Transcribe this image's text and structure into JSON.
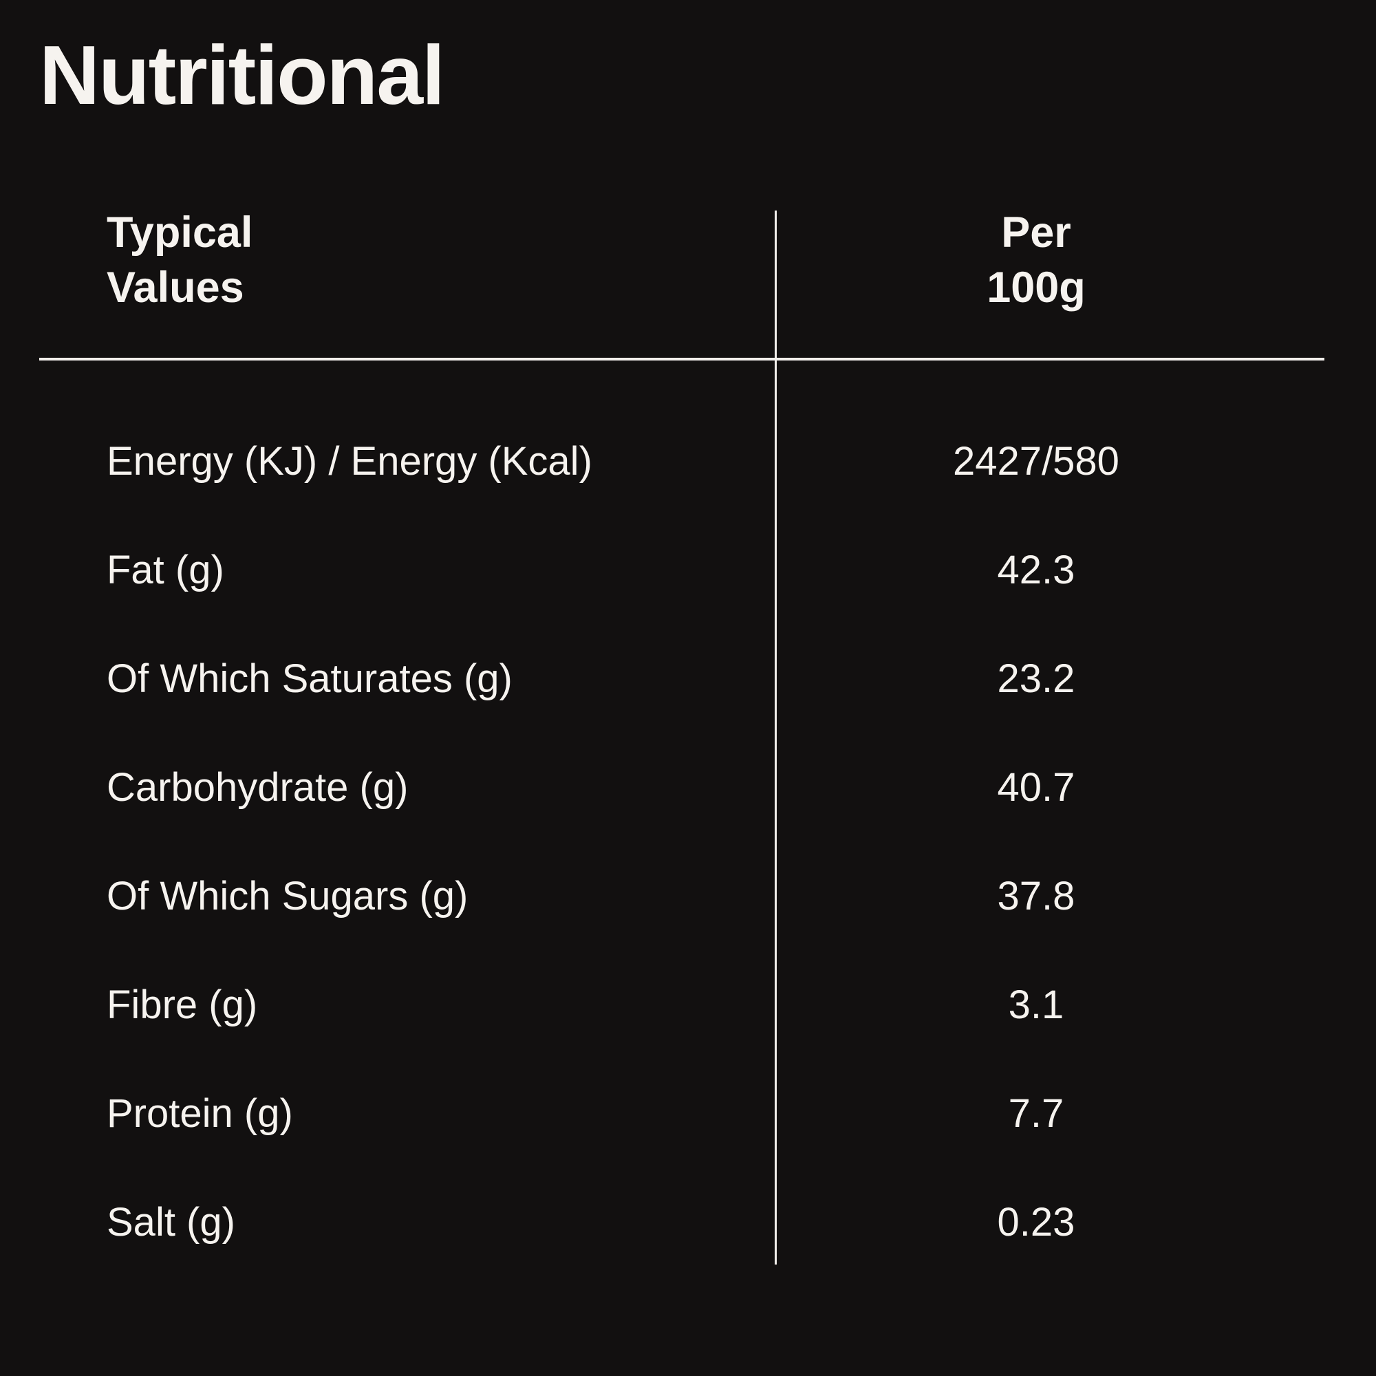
{
  "colors": {
    "background": "#121010",
    "text": "#f6f3ef",
    "divider": "#f2efec"
  },
  "title": "Nutritional",
  "table": {
    "header": {
      "typical_values": "Typical\nValues",
      "per_100g": "Per\n100g"
    },
    "rows": [
      {
        "label": "Energy (KJ) / Energy (Kcal)",
        "per_100g": "2427/580"
      },
      {
        "label": "Fat (g)",
        "per_100g": "42.3"
      },
      {
        "label": "Of Which Saturates (g)",
        "per_100g": "23.2"
      },
      {
        "label": "Carbohydrate (g)",
        "per_100g": "40.7"
      },
      {
        "label": "Of Which Sugars (g)",
        "per_100g": "37.8"
      },
      {
        "label": "Fibre (g)",
        "per_100g": "3.1"
      },
      {
        "label": "Protein (g)",
        "per_100g": "7.7"
      },
      {
        "label": "Salt (g)",
        "per_100g": "0.23"
      }
    ]
  }
}
